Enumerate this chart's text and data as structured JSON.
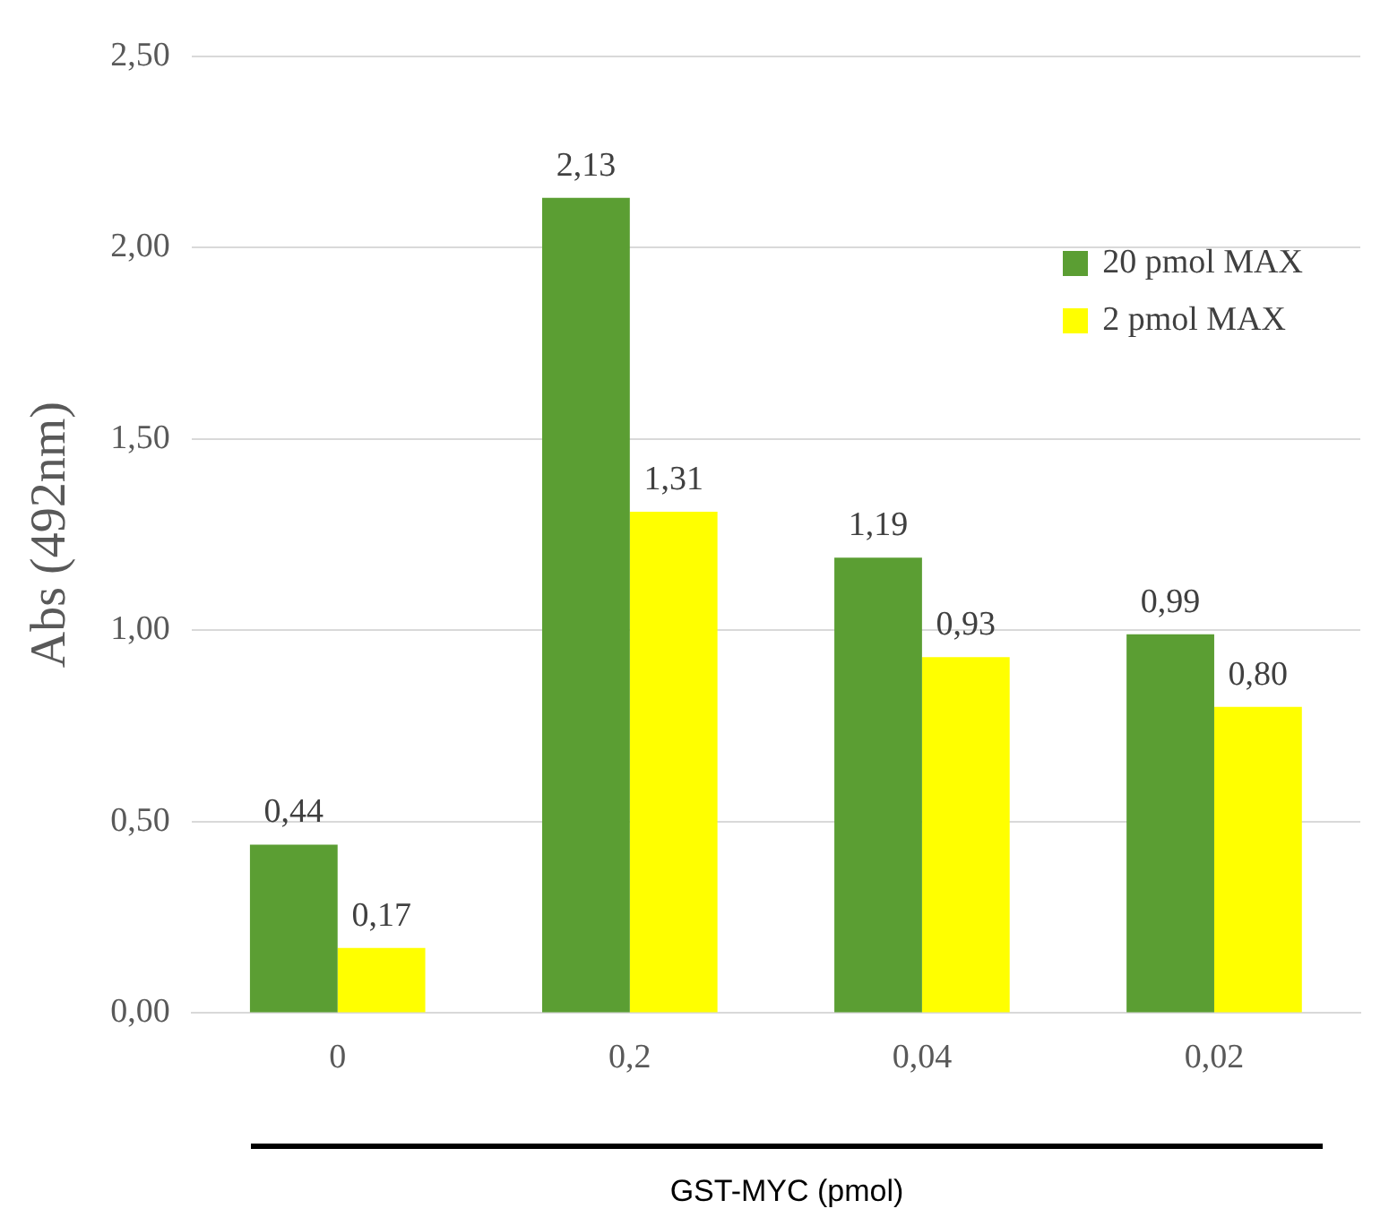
{
  "chart_data": {
    "type": "bar",
    "ylabel": "Abs (492nm)",
    "xlabel": "GST-MYC (pmol)",
    "categories": [
      "0",
      "0,2",
      "0,04",
      "0,02"
    ],
    "series": [
      {
        "name": "20 pmol MAX",
        "color": "#5b9e33",
        "values": [
          0.44,
          2.13,
          1.19,
          0.99
        ],
        "value_labels": [
          "0,44",
          "2,13",
          "1,19",
          "0,99"
        ]
      },
      {
        "name": "2 pmol MAX",
        "color": "#ffff00",
        "values": [
          0.17,
          1.31,
          0.93,
          0.8
        ],
        "value_labels": [
          "0,17",
          "1,31",
          "0,93",
          "0,80"
        ]
      }
    ],
    "ylim": [
      0,
      2.5
    ],
    "yticks": [
      {
        "value": 0,
        "label": "0,00"
      },
      {
        "value": 0.5,
        "label": "0,50"
      },
      {
        "value": 1,
        "label": "1,00"
      },
      {
        "value": 1.5,
        "label": "1,50"
      },
      {
        "value": 2,
        "label": "2,00"
      },
      {
        "value": 2.5,
        "label": "2,50"
      }
    ],
    "grid": "y",
    "legend": "top right"
  }
}
